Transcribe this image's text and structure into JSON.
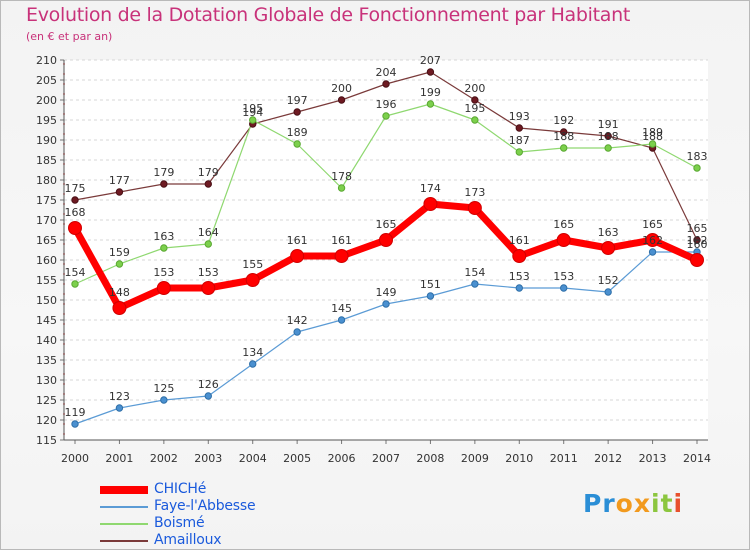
{
  "title": "Evolution de la Dotation Globale de Fonctionnement par Habitant",
  "subtitle": "(en € et par an)",
  "logo": {
    "letters": [
      "P",
      "r",
      "o",
      "x",
      "i",
      "t",
      "i"
    ],
    "colors": [
      "#2a8ed6",
      "#2a8ed6",
      "#f29a1e",
      "#f29a1e",
      "#8cc63f",
      "#8cc63f",
      "#e8502d"
    ]
  },
  "chart_data": {
    "type": "line",
    "title": "Evolution de la Dotation Globale de Fonctionnement par Habitant",
    "subtitle": "(en € et par an)",
    "xlabel": "",
    "ylabel": "",
    "ylim": [
      115,
      210
    ],
    "y_ticks": [
      115,
      120,
      125,
      130,
      135,
      140,
      145,
      150,
      155,
      160,
      165,
      170,
      175,
      180,
      185,
      190,
      195,
      200,
      205,
      210
    ],
    "categories": [
      "2000",
      "2001",
      "2002",
      "2003",
      "2004",
      "2005",
      "2006",
      "2007",
      "2008",
      "2009",
      "2010",
      "2011",
      "2012",
      "2013",
      "2014"
    ],
    "grid": "horizontal dashed",
    "legend_position": "bottom-left",
    "series": [
      {
        "name": "CHICHé",
        "color": "#ff0000",
        "values": [
          168,
          148,
          153,
          153,
          155,
          161,
          161,
          165,
          174,
          173,
          161,
          165,
          163,
          165,
          160
        ],
        "labels": [
          "168",
          "148",
          "153",
          "153",
          "155",
          "161",
          "161",
          "165",
          "174",
          "173",
          "161",
          "165",
          "163",
          "165",
          "160"
        ]
      },
      {
        "name": "Faye-l'Abbesse",
        "color": "#5b9bd5",
        "values": [
          119,
          123,
          125,
          126,
          134,
          142,
          145,
          149,
          151,
          154,
          153,
          153,
          152,
          162,
          162
        ],
        "labels": [
          "119",
          "123",
          "125",
          "126",
          "134",
          "142",
          "145",
          "149",
          "151",
          "154",
          "153",
          "153",
          "152",
          "162",
          "162"
        ]
      },
      {
        "name": "Boismé",
        "color": "#8fd870",
        "values": [
          154,
          159,
          163,
          164,
          195,
          189,
          178,
          196,
          199,
          195,
          187,
          188,
          188,
          189,
          183
        ],
        "labels": [
          "154",
          "159",
          "163",
          "164",
          "195",
          "189",
          "178",
          "196",
          "199",
          "195",
          "187",
          "188",
          "188",
          "189",
          "183"
        ]
      },
      {
        "name": "Amailloux",
        "color": "#7a3a3a",
        "values": [
          175,
          177,
          179,
          179,
          194,
          197,
          200,
          204,
          207,
          200,
          193,
          192,
          191,
          188,
          165
        ],
        "labels": [
          "175",
          "177",
          "179",
          "179",
          "194",
          "197",
          "200",
          "204",
          "207",
          "200",
          "193",
          "192",
          "191",
          "188",
          "165"
        ]
      }
    ]
  }
}
